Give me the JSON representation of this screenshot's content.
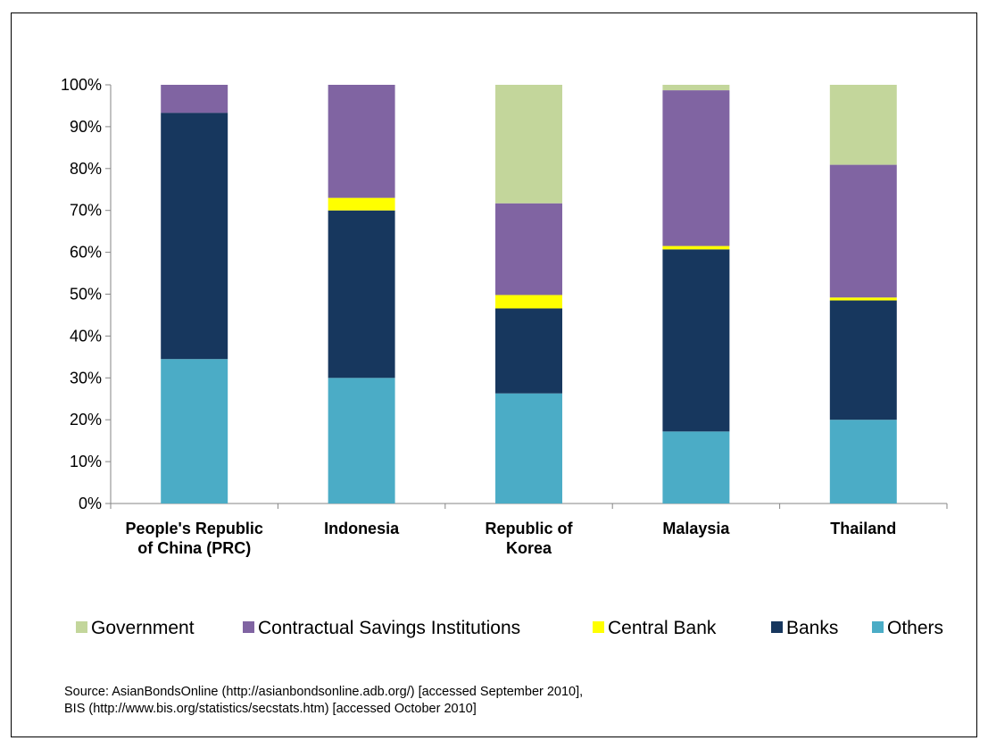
{
  "chart_data": {
    "type": "bar",
    "stacked": true,
    "title": "",
    "xlabel": "",
    "ylabel": "",
    "ylim": [
      0,
      100
    ],
    "yticks": [
      "0%",
      "10%",
      "20%",
      "30%",
      "40%",
      "50%",
      "60%",
      "70%",
      "80%",
      "90%",
      "100%"
    ],
    "categories": [
      [
        "People's Republic",
        "of China (PRC)"
      ],
      [
        "Indonesia"
      ],
      [
        "Republic of",
        "Korea"
      ],
      [
        "Malaysia"
      ],
      [
        "Thailand"
      ]
    ],
    "series": [
      {
        "name": "Others",
        "color": "#4BACC6",
        "values": [
          34.5,
          30,
          26.3,
          17.2,
          20
        ]
      },
      {
        "name": "Banks",
        "color": "#17375E",
        "values": [
          58.8,
          40,
          20.3,
          43.5,
          28.5
        ]
      },
      {
        "name": "Central Bank",
        "color": "#FFFF00",
        "values": [
          0,
          3,
          3.2,
          0.8,
          0.7
        ]
      },
      {
        "name": "Contractual Savings Institutions",
        "color": "#8064A2",
        "values": [
          6.7,
          27,
          21.9,
          37.2,
          31.7
        ]
      },
      {
        "name": "Government",
        "color": "#C3D69B",
        "values": [
          0,
          0,
          28.3,
          1.3,
          19.1
        ]
      }
    ],
    "legend": {
      "position": "bottom",
      "order": [
        "Government",
        "Contractual Savings Institutions",
        "Central Bank",
        "Banks",
        "Others"
      ]
    },
    "grid": false
  },
  "source": {
    "line1": "Source: AsianBondsOnline (http://asianbondsonline.adb.org/) [accessed September 2010],",
    "line2": " BIS (http://www.bis.org/statistics/secstats.htm) [accessed October 2010]"
  }
}
